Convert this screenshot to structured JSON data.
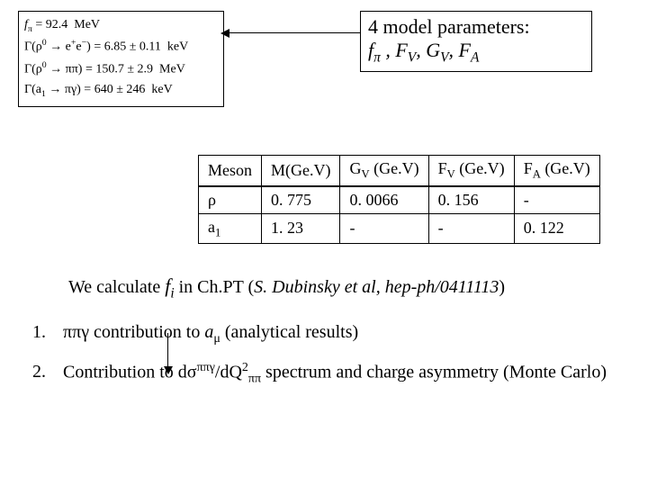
{
  "formulas": {
    "f_pi": "f_π = 92.4 MeV",
    "gamma_ee": "Γ(ρ⁰ → e⁺e⁻) = 6.85 ± 0.11 keV",
    "gamma_pipi": "Γ(ρ⁰ → ππ) = 150.7 ± 2.9 MeV",
    "gamma_a1": "Γ(a₁ → πγ) = 640 ± 246 keV"
  },
  "param_box": {
    "line1": "4 model parameters:",
    "line2_html": "f<sub>π</sub> , F<sub>V</sub>, G<sub>V</sub>, F<sub>A</sub>"
  },
  "table": {
    "headers": [
      "Meson",
      "M(Ge.V)",
      "G_V (Ge.V)",
      "F_V (Ge.V)",
      "F_A (Ge.V)"
    ],
    "rows": [
      {
        "meson": "ρ",
        "mass": "0. 775",
        "gv": "0. 0066",
        "fv": "0. 156",
        "fa": "-"
      },
      {
        "meson": "a₁",
        "mass": "1. 23",
        "gv": "-",
        "fv": "-",
        "fa": "0. 122"
      }
    ]
  },
  "calc_line": {
    "prefix": "We calculate ",
    "fi": "f_i",
    "mid": " in Ch.PT  (",
    "ref": "S. Dubinsky et al, hep-ph/0411113",
    "suffix": ")"
  },
  "points": {
    "p1_html": "ππγ contribution to a<sub>μ</sub> (analytical results)",
    "p2_html": "Contribution to dσ<sup>ππγ</sup>/dQ²<sub>ππ</sub> spectrum and charge asymmetry (Monte Carlo)"
  }
}
